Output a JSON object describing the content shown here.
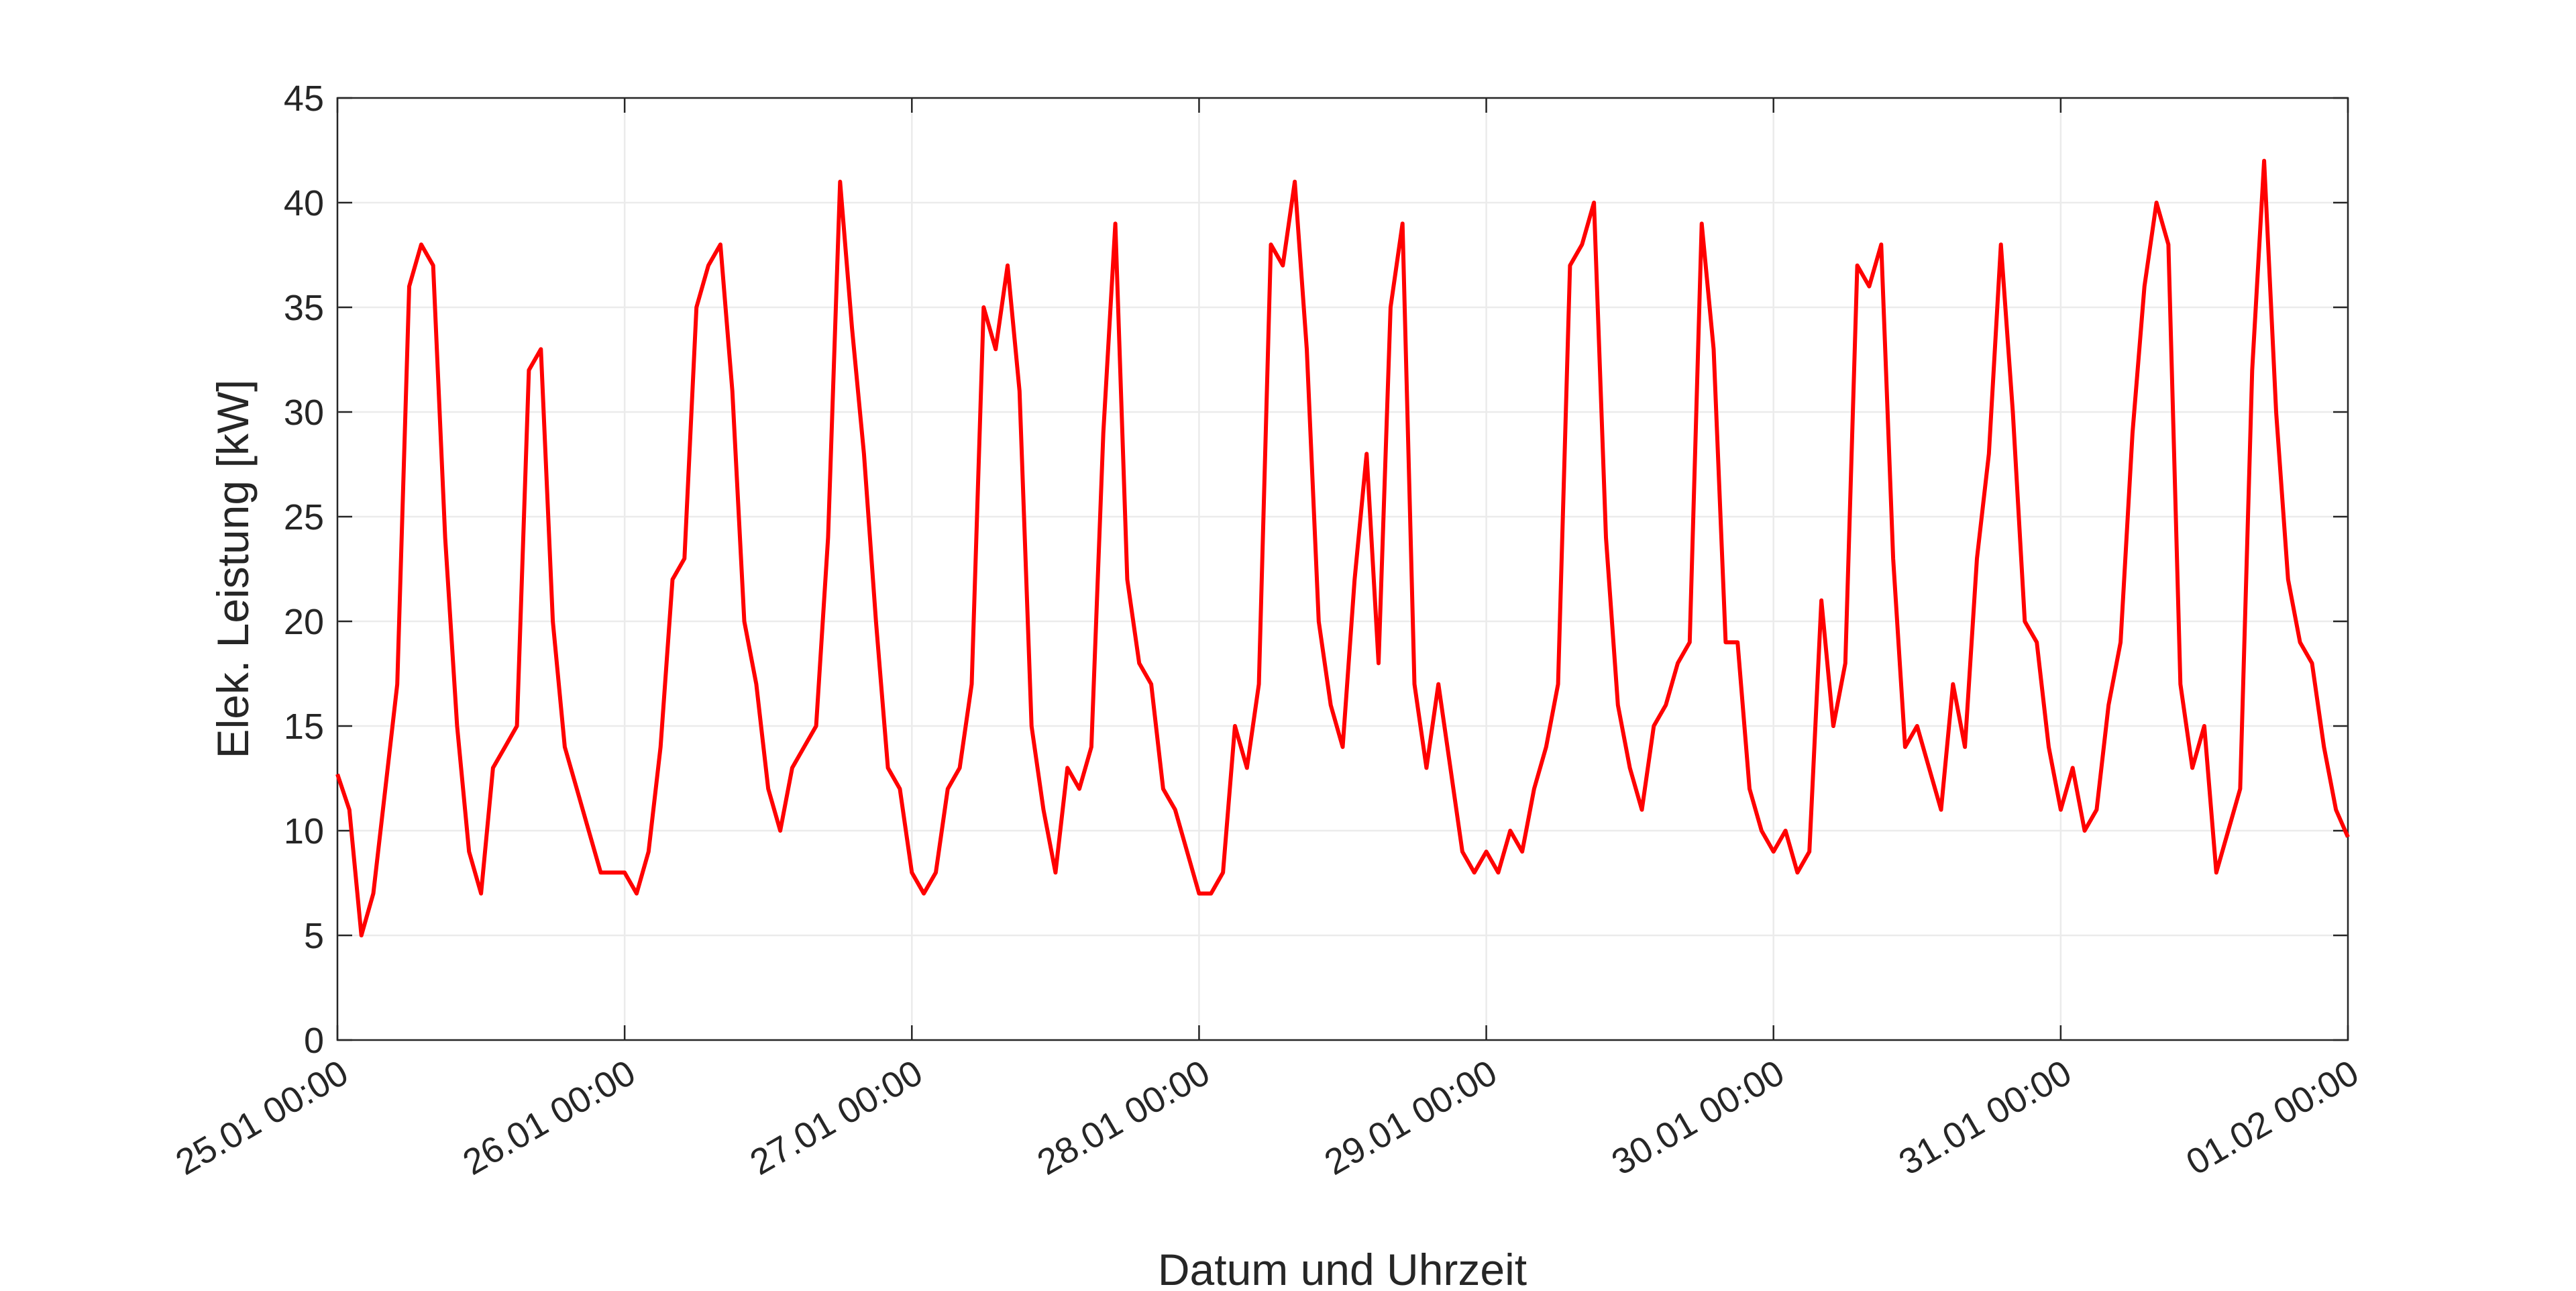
{
  "chart_data": {
    "type": "line",
    "xlabel": "Datum und Uhrzeit",
    "ylabel": "Elek. Leistung [kW]",
    "x": [
      "25.01 00:00",
      "25.01 01:00",
      "25.01 02:00",
      "25.01 03:00",
      "25.01 04:00",
      "25.01 05:00",
      "25.01 06:00",
      "25.01 07:00",
      "25.01 08:00",
      "25.01 09:00",
      "25.01 10:00",
      "25.01 11:00",
      "25.01 12:00",
      "25.01 13:00",
      "25.01 14:00",
      "25.01 15:00",
      "25.01 16:00",
      "25.01 17:00",
      "25.01 18:00",
      "25.01 19:00",
      "25.01 20:00",
      "25.01 21:00",
      "25.01 22:00",
      "25.01 23:00",
      "26.01 00:00",
      "26.01 01:00",
      "26.01 02:00",
      "26.01 03:00",
      "26.01 04:00",
      "26.01 05:00",
      "26.01 06:00",
      "26.01 07:00",
      "26.01 08:00",
      "26.01 09:00",
      "26.01 10:00",
      "26.01 11:00",
      "26.01 12:00",
      "26.01 13:00",
      "26.01 14:00",
      "26.01 15:00",
      "26.01 16:00",
      "26.01 17:00",
      "26.01 18:00",
      "26.01 19:00",
      "26.01 20:00",
      "26.01 21:00",
      "26.01 22:00",
      "26.01 23:00",
      "27.01 00:00",
      "27.01 01:00",
      "27.01 02:00",
      "27.01 03:00",
      "27.01 04:00",
      "27.01 05:00",
      "27.01 06:00",
      "27.01 07:00",
      "27.01 08:00",
      "27.01 09:00",
      "27.01 10:00",
      "27.01 11:00",
      "27.01 12:00",
      "27.01 13:00",
      "27.01 14:00",
      "27.01 15:00",
      "27.01 16:00",
      "27.01 17:00",
      "27.01 18:00",
      "27.01 19:00",
      "27.01 20:00",
      "27.01 21:00",
      "27.01 22:00",
      "27.01 23:00",
      "28.01 00:00",
      "28.01 01:00",
      "28.01 02:00",
      "28.01 03:00",
      "28.01 04:00",
      "28.01 05:00",
      "28.01 06:00",
      "28.01 07:00",
      "28.01 08:00",
      "28.01 09:00",
      "28.01 10:00",
      "28.01 11:00",
      "28.01 12:00",
      "28.01 13:00",
      "28.01 14:00",
      "28.01 15:00",
      "28.01 16:00",
      "28.01 17:00",
      "28.01 18:00",
      "28.01 19:00",
      "28.01 20:00",
      "28.01 21:00",
      "28.01 22:00",
      "28.01 23:00",
      "29.01 00:00",
      "29.01 01:00",
      "29.01 02:00",
      "29.01 03:00",
      "29.01 04:00",
      "29.01 05:00",
      "29.01 06:00",
      "29.01 07:00",
      "29.01 08:00",
      "29.01 09:00",
      "29.01 10:00",
      "29.01 11:00",
      "29.01 12:00",
      "29.01 13:00",
      "29.01 14:00",
      "29.01 15:00",
      "29.01 16:00",
      "29.01 17:00",
      "29.01 18:00",
      "29.01 19:00",
      "29.01 20:00",
      "29.01 21:00",
      "29.01 22:00",
      "29.01 23:00",
      "30.01 00:00",
      "30.01 01:00",
      "30.01 02:00",
      "30.01 03:00",
      "30.01 04:00",
      "30.01 05:00",
      "30.01 06:00",
      "30.01 07:00",
      "30.01 08:00",
      "30.01 09:00",
      "30.01 10:00",
      "30.01 11:00",
      "30.01 12:00",
      "30.01 13:00",
      "30.01 14:00",
      "30.01 15:00",
      "30.01 16:00",
      "30.01 17:00",
      "30.01 18:00",
      "30.01 19:00",
      "30.01 20:00",
      "30.01 21:00",
      "30.01 22:00",
      "30.01 23:00",
      "31.01 00:00",
      "31.01 01:00",
      "31.01 02:00",
      "31.01 03:00",
      "31.01 04:00",
      "31.01 05:00",
      "31.01 06:00",
      "31.01 07:00",
      "31.01 08:00",
      "31.01 09:00",
      "31.01 10:00",
      "31.01 11:00",
      "31.01 12:00",
      "31.01 13:00",
      "31.01 14:00",
      "31.01 15:00",
      "31.01 16:00",
      "31.01 17:00",
      "31.01 18:00",
      "31.01 19:00",
      "31.01 20:00",
      "31.01 21:00",
      "31.01 22:00",
      "31.01 23:00",
      "01.02 00:00"
    ],
    "series": [
      {
        "name": "Elek. Leistung",
        "color": "#ff0000",
        "values": [
          12.7,
          11,
          5,
          7,
          12,
          17,
          36,
          38,
          37,
          24,
          15,
          9,
          7,
          13,
          14,
          15,
          32,
          33,
          20,
          14,
          12,
          10,
          8,
          8,
          8,
          7,
          9,
          14,
          22,
          23,
          35,
          37,
          38,
          31,
          20,
          17,
          12,
          10,
          13,
          14,
          15,
          24,
          41,
          34,
          28,
          20,
          13,
          12,
          8,
          7,
          8,
          12,
          13,
          17,
          35,
          33,
          37,
          31,
          15,
          11,
          8,
          13,
          12,
          14,
          29,
          39,
          22,
          18,
          17,
          12,
          11,
          9,
          7,
          7,
          8,
          15,
          13,
          17,
          38,
          37,
          41,
          33,
          20,
          16,
          14,
          22,
          28,
          18,
          35,
          39,
          17,
          13,
          17,
          13,
          9,
          8,
          9,
          8,
          10,
          9,
          12,
          14,
          17,
          37,
          38,
          40,
          24,
          16,
          13,
          11,
          15,
          16,
          18,
          19,
          39,
          33,
          19,
          19,
          12,
          10,
          9,
          10,
          8,
          9,
          21,
          15,
          18,
          37,
          36,
          38,
          23,
          14,
          15,
          13,
          11,
          17,
          14,
          23,
          28,
          38,
          30,
          20,
          19,
          14,
          11,
          13,
          10,
          11,
          16,
          19,
          29,
          36,
          40,
          38,
          17,
          13,
          15,
          8,
          10,
          12,
          32,
          42,
          30,
          22,
          19,
          18,
          14,
          11,
          9.7
        ]
      }
    ],
    "xlim": [
      "25.01 00:00",
      "01.02 00:00"
    ],
    "xticks": [
      "25.01 00:00",
      "26.01 00:00",
      "27.01 00:00",
      "28.01 00:00",
      "29.01 00:00",
      "30.01 00:00",
      "31.01 00:00",
      "01.02 00:00"
    ],
    "ylim": [
      0,
      45
    ],
    "yticks": [
      0,
      5,
      10,
      15,
      20,
      25,
      30,
      35,
      40,
      45
    ],
    "grid": true
  }
}
